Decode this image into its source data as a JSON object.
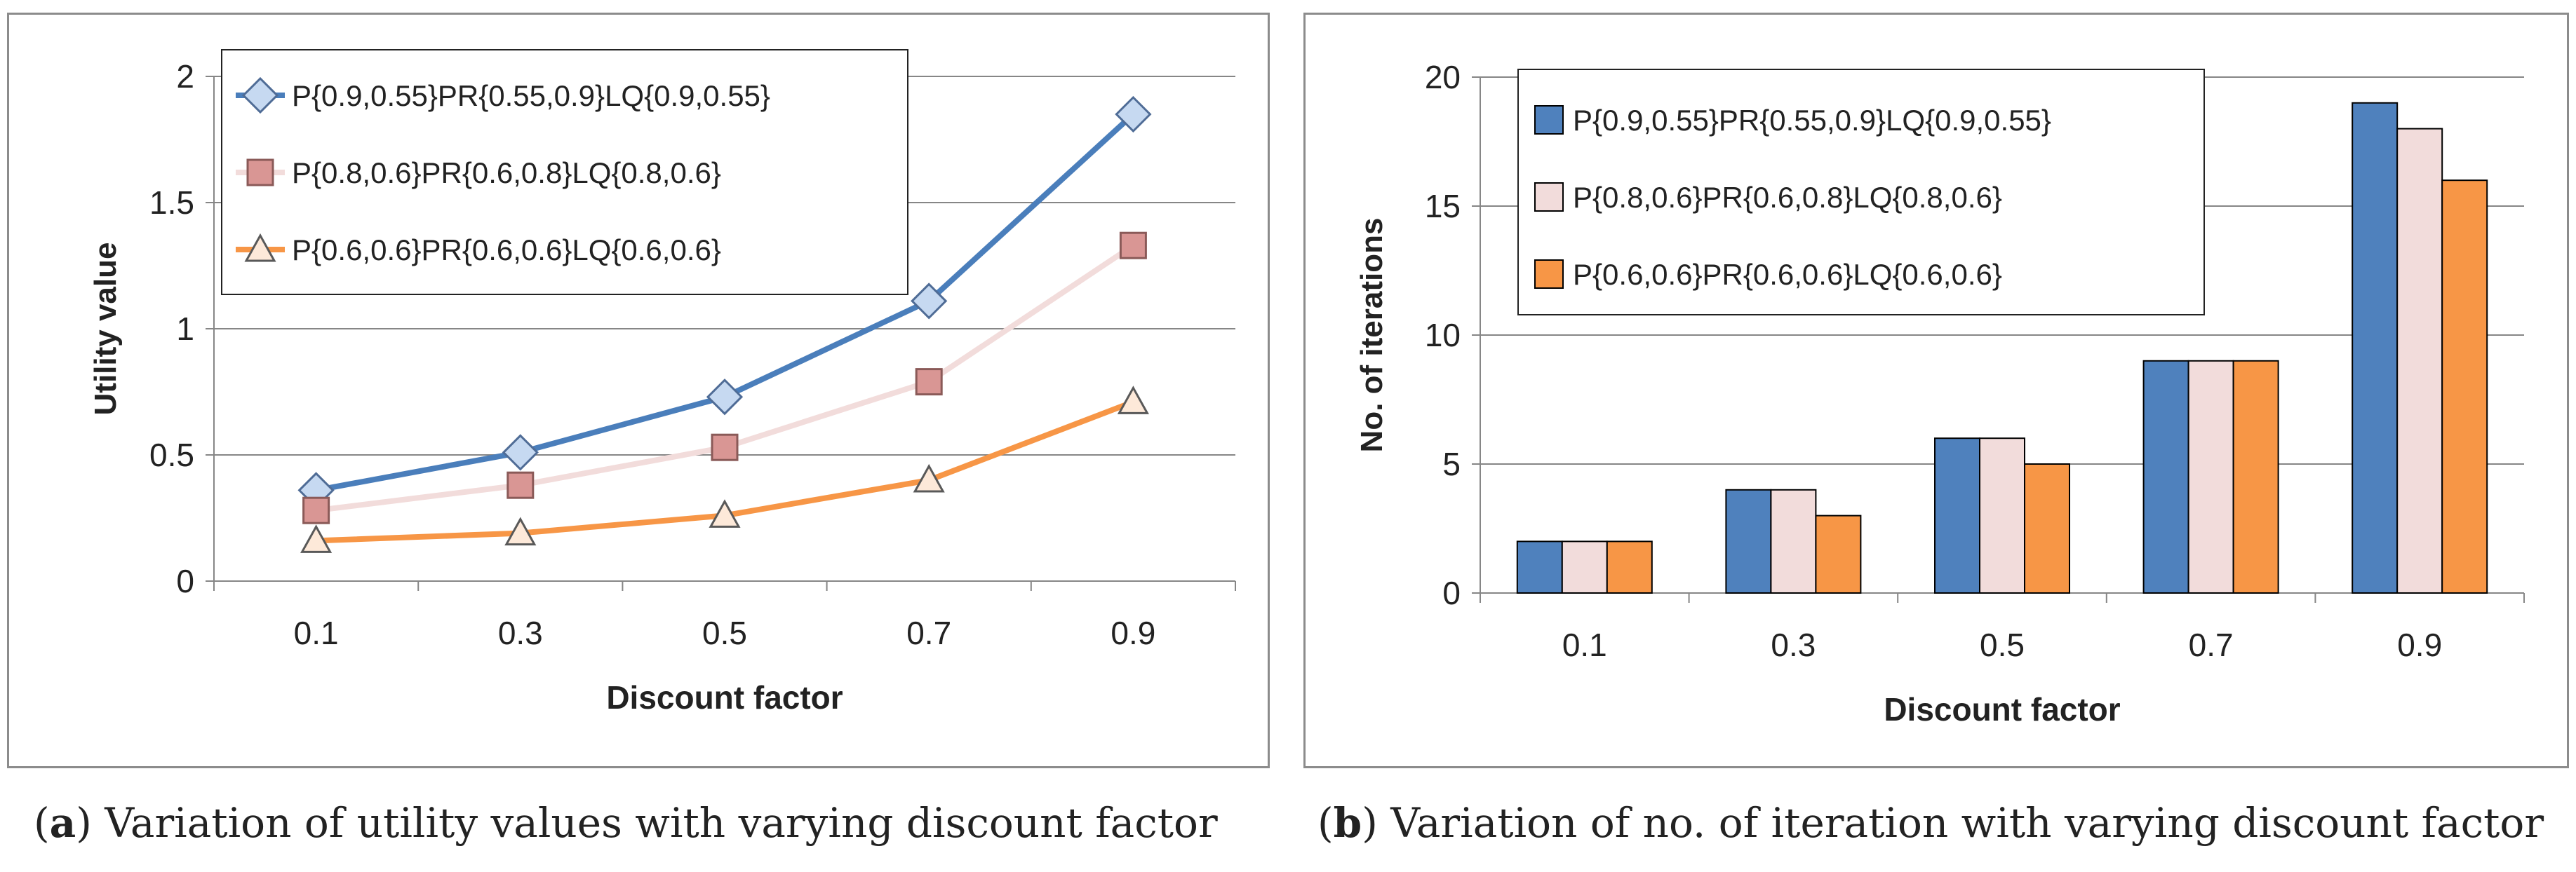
{
  "panels": {
    "a": {
      "caption_letter": "a",
      "caption_text": " Variation of utility values with varying discount factor"
    },
    "b": {
      "caption_letter": "b",
      "caption_text": " Variation of no. of iteration with varying discount factor"
    }
  },
  "chart_data": [
    {
      "type": "line",
      "title": "",
      "xlabel": "Discount factor",
      "ylabel": "Utility value",
      "categories": [
        "0.1",
        "0.3",
        "0.5",
        "0.7",
        "0.9"
      ],
      "ylim": [
        0,
        2
      ],
      "yticks": [
        "0",
        "0.5",
        "1",
        "1.5",
        "2"
      ],
      "grid": true,
      "legend_position": "top-left",
      "series": [
        {
          "name": "P{0.9,0.55}PR{0.55,0.9}LQ{0.9,0.55}",
          "values": [
            0.36,
            0.51,
            0.73,
            1.11,
            1.85
          ],
          "color": "#4a7ebb",
          "marker_fill": "#c6d9f1",
          "marker": "diamond"
        },
        {
          "name": "P{0.8,0.6}PR{0.6,0.8}LQ{0.8,0.6}",
          "values": [
            0.28,
            0.38,
            0.53,
            0.79,
            1.33
          ],
          "color": "#f2dcdb",
          "marker_fill": "#d99694",
          "marker": "square"
        },
        {
          "name": "P{0.6,0.6}PR{0.6,0.6}LQ{0.6,0.6}",
          "values": [
            0.16,
            0.19,
            0.26,
            0.4,
            0.71
          ],
          "color": "#f79646",
          "marker_fill": "#fde9d9",
          "marker": "triangle"
        }
      ]
    },
    {
      "type": "bar",
      "title": "",
      "xlabel": "Discount factor",
      "ylabel": "No. of iterations",
      "categories": [
        "0.1",
        "0.3",
        "0.5",
        "0.7",
        "0.9"
      ],
      "ylim": [
        0,
        20
      ],
      "yticks": [
        "0",
        "5",
        "10",
        "15",
        "20"
      ],
      "grid": true,
      "legend_position": "top-left",
      "series": [
        {
          "name": "P{0.9,0.55}PR{0.55,0.9}LQ{0.9,0.55}",
          "values": [
            2,
            4,
            6,
            9,
            19
          ],
          "color": "#4f81bd"
        },
        {
          "name": "P{0.8,0.6}PR{0.6,0.8}LQ{0.8,0.6}",
          "values": [
            2,
            4,
            6,
            9,
            18
          ],
          "color": "#f2dcdb"
        },
        {
          "name": "P{0.6,0.6}PR{0.6,0.6}LQ{0.6,0.6}",
          "values": [
            2,
            3,
            5,
            9,
            16
          ],
          "color": "#f79646"
        }
      ]
    }
  ]
}
